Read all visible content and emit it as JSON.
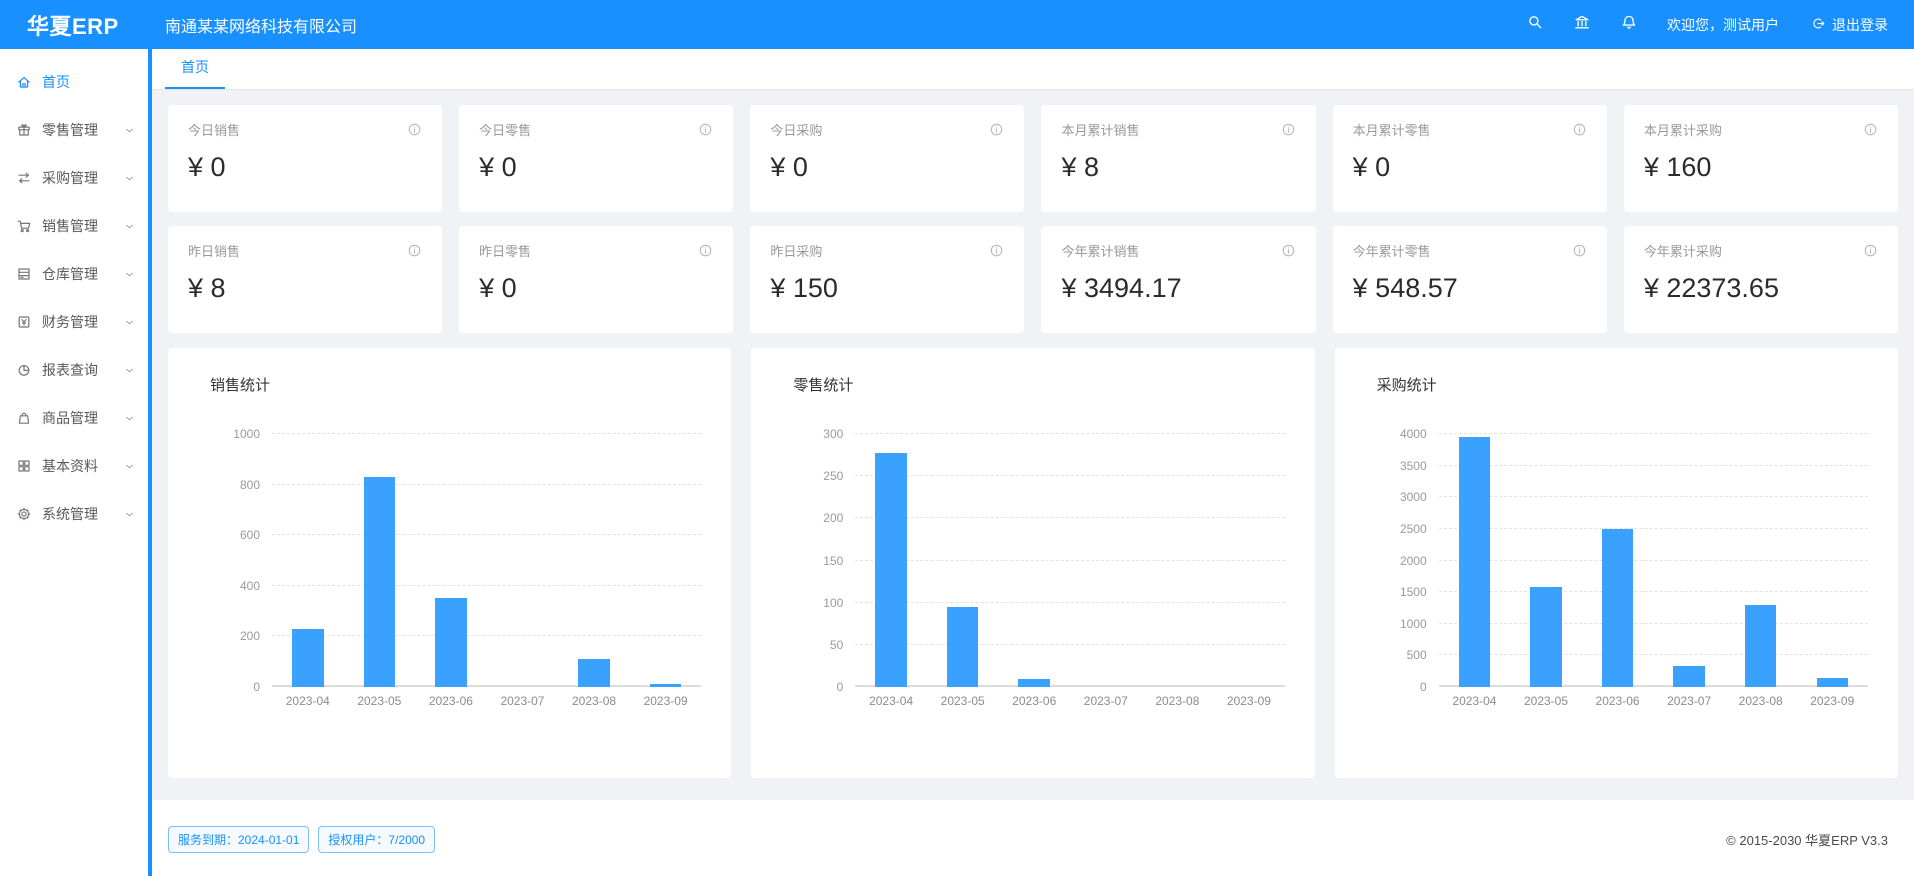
{
  "colors": {
    "primary": "#1890ff",
    "bar": "#3aa1ff",
    "background": "#f0f2f5"
  },
  "header": {
    "logo": "华夏ERP",
    "company": "南通某某网络科技有限公司",
    "toolbar_icons": [
      "search-icon",
      "bank-icon",
      "bell-icon"
    ],
    "welcome": "欢迎您，测试用户",
    "logout_label": "退出登录"
  },
  "sidebar": {
    "items": [
      {
        "label": "首页",
        "icon": "home-icon",
        "active": true,
        "has_children": false
      },
      {
        "label": "零售管理",
        "icon": "gift-icon",
        "active": false,
        "has_children": true
      },
      {
        "label": "采购管理",
        "icon": "swap-icon",
        "active": false,
        "has_children": true
      },
      {
        "label": "销售管理",
        "icon": "cart-icon",
        "active": false,
        "has_children": true
      },
      {
        "label": "仓库管理",
        "icon": "storage-icon",
        "active": false,
        "has_children": true
      },
      {
        "label": "财务管理",
        "icon": "money-icon",
        "active": false,
        "has_children": true
      },
      {
        "label": "报表查询",
        "icon": "pie-chart-icon",
        "active": false,
        "has_children": true
      },
      {
        "label": "商品管理",
        "icon": "bag-icon",
        "active": false,
        "has_children": true
      },
      {
        "label": "基本资料",
        "icon": "grid-icon",
        "active": false,
        "has_children": true
      },
      {
        "label": "系统管理",
        "icon": "gear-icon",
        "active": false,
        "has_children": true
      }
    ]
  },
  "tabs": [
    {
      "label": "首页",
      "active": true
    }
  ],
  "stat_cards": [
    {
      "label": "今日销售",
      "value": "¥ 0"
    },
    {
      "label": "今日零售",
      "value": "¥ 0"
    },
    {
      "label": "今日采购",
      "value": "¥ 0"
    },
    {
      "label": "本月累计销售",
      "value": "¥ 8"
    },
    {
      "label": "本月累计零售",
      "value": "¥ 0"
    },
    {
      "label": "本月累计采购",
      "value": "¥ 160"
    },
    {
      "label": "昨日销售",
      "value": "¥ 8"
    },
    {
      "label": "昨日零售",
      "value": "¥ 0"
    },
    {
      "label": "昨日采购",
      "value": "¥ 150"
    },
    {
      "label": "今年累计销售",
      "value": "¥ 3494.17"
    },
    {
      "label": "今年累计零售",
      "value": "¥ 548.57"
    },
    {
      "label": "今年累计采购",
      "value": "¥ 22373.65"
    }
  ],
  "chart_data": [
    {
      "type": "bar",
      "title": "销售统计",
      "categories": [
        "2023-04",
        "2023-05",
        "2023-06",
        "2023-07",
        "2023-08",
        "2023-09"
      ],
      "values": [
        230,
        830,
        350,
        0,
        110,
        10
      ],
      "xlabel": "",
      "ylabel": "",
      "ylim": [
        0,
        1000
      ],
      "ytick_step": 200,
      "grid": true,
      "legend": "none",
      "bar_color": "#3aa1ff"
    },
    {
      "type": "bar",
      "title": "零售统计",
      "categories": [
        "2023-04",
        "2023-05",
        "2023-06",
        "2023-07",
        "2023-08",
        "2023-09"
      ],
      "values": [
        277,
        95,
        10,
        0,
        0,
        0
      ],
      "xlabel": "",
      "ylabel": "",
      "ylim": [
        0,
        300
      ],
      "ytick_step": 50,
      "grid": true,
      "legend": "none",
      "bar_color": "#3aa1ff"
    },
    {
      "type": "bar",
      "title": "采购统计",
      "categories": [
        "2023-04",
        "2023-05",
        "2023-06",
        "2023-07",
        "2023-08",
        "2023-09"
      ],
      "values": [
        3950,
        1580,
        2500,
        330,
        1300,
        150
      ],
      "xlabel": "",
      "ylabel": "",
      "ylim": [
        0,
        4000
      ],
      "ytick_step": 500,
      "grid": true,
      "legend": "none",
      "bar_color": "#3aa1ff"
    }
  ],
  "footer": {
    "tags": [
      "服务到期：2024-01-01",
      "授权用户：7/2000"
    ],
    "copyright": "© 2015-2030 华夏ERP V3.3"
  }
}
